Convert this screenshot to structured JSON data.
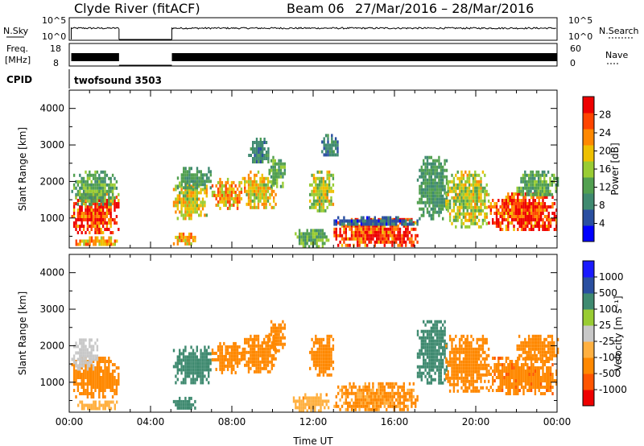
{
  "header": {
    "title": "Clyde River (fitACF)",
    "beam": "Beam 06",
    "date_range": "27/Mar/2016 – 28/Mar/2016"
  },
  "noise_panel": {
    "left_label": "N.Sky",
    "left_ticks": [
      "10^5",
      "10^0"
    ],
    "right_label": "N.Search",
    "right_ticks": [
      "10^5",
      "10^0"
    ]
  },
  "freq_panel": {
    "left_label_1": "Freq.",
    "left_label_2": "[MHz]",
    "left_ticks": [
      "18",
      "8"
    ],
    "right_label": "Nave",
    "right_ticks": [
      "60",
      "0"
    ]
  },
  "cpid": {
    "label": "CPID",
    "program": "twofsound 3503"
  },
  "colors": {
    "power": [
      "#0000ff",
      "#2a4fa0",
      "#3f8a70",
      "#52a050",
      "#99cc33",
      "#eec000",
      "#ff8800",
      "#ff4400",
      "#ee0000"
    ],
    "velocity": [
      "#ee0000",
      "#ff5500",
      "#ff8800",
      "#ffb040",
      "#c8c8c8",
      "#99cc33",
      "#3f8a70",
      "#2a4fa0",
      "#1a1aff"
    ]
  },
  "chart_data": [
    {
      "type": "heatmap",
      "title": "",
      "xlabel": "",
      "ylabel": "Slant Range [km]",
      "xlim": [
        0,
        24
      ],
      "ylim": [
        180,
        4500
      ],
      "x_ticks": [
        0,
        4,
        8,
        12,
        16,
        20,
        24
      ],
      "y_ticks": [
        1000,
        2000,
        3000,
        4000
      ],
      "colorbar": {
        "label": "Power [dB]",
        "ticks": [
          "4",
          "8",
          "12",
          "16",
          "20",
          "24",
          "28"
        ],
        "range": [
          0,
          30
        ]
      },
      "blobs": [
        {
          "t0": 0.1,
          "t1": 2.4,
          "r0": 600,
          "r1": 1700,
          "v": 26
        },
        {
          "t0": 0.1,
          "t1": 2.4,
          "r0": 1400,
          "r1": 2300,
          "v": 12
        },
        {
          "t0": 0.3,
          "t1": 2.4,
          "r0": 280,
          "r1": 500,
          "v": 20
        },
        {
          "t0": 5.1,
          "t1": 6.8,
          "r0": 1000,
          "r1": 2000,
          "v": 18
        },
        {
          "t0": 5.1,
          "t1": 6.2,
          "r0": 300,
          "r1": 600,
          "v": 20
        },
        {
          "t0": 5.3,
          "t1": 7.0,
          "r0": 1800,
          "r1": 2400,
          "v": 10
        },
        {
          "t0": 7.0,
          "t1": 8.5,
          "r0": 1300,
          "r1": 2100,
          "v": 20
        },
        {
          "t0": 8.5,
          "t1": 10.2,
          "r0": 1300,
          "r1": 2300,
          "v": 18
        },
        {
          "t0": 8.8,
          "t1": 9.8,
          "r0": 2500,
          "r1": 3200,
          "v": 8
        },
        {
          "t0": 9.8,
          "t1": 10.6,
          "r0": 1900,
          "r1": 2700,
          "v": 12
        },
        {
          "t0": 11.8,
          "t1": 13.0,
          "r0": 1200,
          "r1": 2300,
          "v": 16
        },
        {
          "t0": 12.4,
          "t1": 13.2,
          "r0": 2700,
          "r1": 3300,
          "v": 8
        },
        {
          "t0": 11.0,
          "t1": 12.8,
          "r0": 250,
          "r1": 700,
          "v": 12
        },
        {
          "t0": 13.0,
          "t1": 17.1,
          "r0": 250,
          "r1": 1000,
          "v": 26
        },
        {
          "t0": 13.0,
          "t1": 17.1,
          "r0": 800,
          "r1": 1050,
          "v": 6
        },
        {
          "t0": 17.1,
          "t1": 18.6,
          "r0": 1000,
          "r1": 2700,
          "v": 10
        },
        {
          "t0": 18.5,
          "t1": 20.6,
          "r0": 800,
          "r1": 2300,
          "v": 16
        },
        {
          "t0": 20.6,
          "t1": 24.0,
          "r0": 700,
          "r1": 1700,
          "v": 26
        },
        {
          "t0": 22.0,
          "t1": 24.0,
          "r0": 1600,
          "r1": 2300,
          "v": 12
        }
      ]
    },
    {
      "type": "heatmap",
      "title": "",
      "xlabel": "Time UT",
      "ylabel": "Slant Range [km]",
      "xlim": [
        0,
        24
      ],
      "ylim": [
        180,
        4500
      ],
      "x_ticks": [
        0,
        4,
        8,
        12,
        16,
        20,
        24
      ],
      "x_tick_labels": [
        "00:00",
        "04:00",
        "08:00",
        "12:00",
        "16:00",
        "20:00",
        "00:00"
      ],
      "y_ticks": [
        1000,
        2000,
        3000,
        4000
      ],
      "colorbar": {
        "label": "Velocity [m s⁻¹]",
        "ticks": [
          "-1000",
          "-500",
          "-100",
          "-25",
          "25",
          "100",
          "500",
          "1000"
        ],
        "range": [
          -1200,
          1200
        ]
      },
      "blobs": [
        {
          "t0": 0.1,
          "t1": 2.4,
          "r0": 600,
          "r1": 1700,
          "v": -150
        },
        {
          "t0": 0.1,
          "t1": 1.4,
          "r0": 1400,
          "r1": 2200,
          "v": 0
        },
        {
          "t0": 0.3,
          "t1": 2.4,
          "r0": 280,
          "r1": 500,
          "v": -60
        },
        {
          "t0": 5.1,
          "t1": 7.0,
          "r0": 1000,
          "r1": 2000,
          "v": 200
        },
        {
          "t0": 5.1,
          "t1": 6.2,
          "r0": 300,
          "r1": 600,
          "v": 150
        },
        {
          "t0": 7.0,
          "t1": 8.5,
          "r0": 1300,
          "r1": 2100,
          "v": -300
        },
        {
          "t0": 8.5,
          "t1": 10.2,
          "r0": 1300,
          "r1": 2300,
          "v": -300
        },
        {
          "t0": 9.8,
          "t1": 10.6,
          "r0": 1900,
          "r1": 2700,
          "v": -200
        },
        {
          "t0": 11.8,
          "t1": 13.0,
          "r0": 1200,
          "r1": 2300,
          "v": -200
        },
        {
          "t0": 11.0,
          "t1": 12.8,
          "r0": 250,
          "r1": 700,
          "v": -80
        },
        {
          "t0": 13.0,
          "t1": 17.1,
          "r0": 250,
          "r1": 1000,
          "v": -120
        },
        {
          "t0": 17.1,
          "t1": 18.6,
          "r0": 1000,
          "r1": 2700,
          "v": 300
        },
        {
          "t0": 18.5,
          "t1": 20.6,
          "r0": 800,
          "r1": 2300,
          "v": -150
        },
        {
          "t0": 20.6,
          "t1": 24.0,
          "r0": 700,
          "r1": 1700,
          "v": -400
        },
        {
          "t0": 22.0,
          "t1": 24.0,
          "r0": 1600,
          "r1": 2300,
          "v": -200
        }
      ]
    }
  ]
}
